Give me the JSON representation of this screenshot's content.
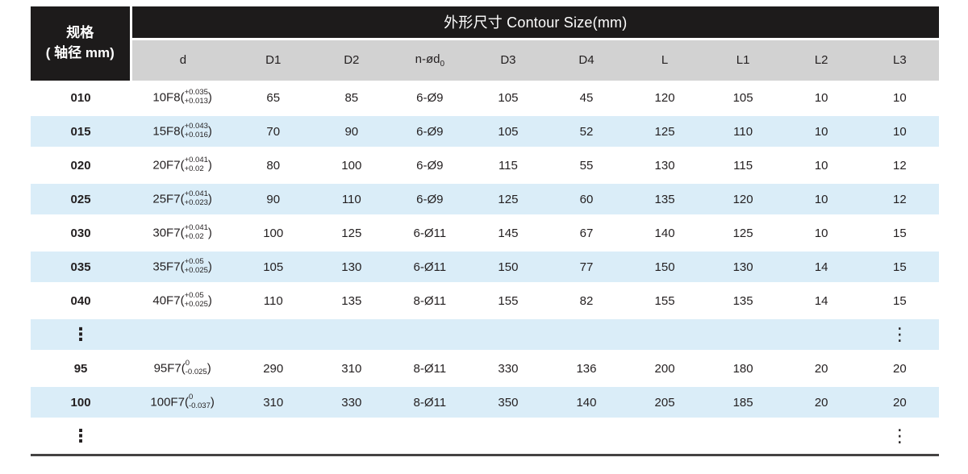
{
  "colors": {
    "header_black": "#1d1b1b",
    "subheader_gray": "#d2d2d2",
    "row_blue": "#daedf8",
    "text": "#231f20",
    "bottom_rule": "#454343"
  },
  "table": {
    "spec_header": {
      "line1": "规格",
      "line2": "( 轴径 mm)"
    },
    "group_header": "外形尺寸 Contour Size(mm)",
    "columns": [
      {
        "label": "d",
        "sub": ""
      },
      {
        "label": "D1",
        "sub": ""
      },
      {
        "label": "D2",
        "sub": ""
      },
      {
        "label": "n-ød",
        "sub": "0"
      },
      {
        "label": "D3",
        "sub": ""
      },
      {
        "label": "D4",
        "sub": ""
      },
      {
        "label": "L",
        "sub": ""
      },
      {
        "label": "L1",
        "sub": ""
      },
      {
        "label": "L2",
        "sub": ""
      },
      {
        "label": "L3",
        "sub": ""
      }
    ],
    "ellipsis_char": "⋮",
    "rows": [
      {
        "type": "data",
        "spec": "010",
        "d": {
          "base": "10F8(",
          "top": "+0.035",
          "bottom": "+0.013",
          "close": ")"
        },
        "values": [
          "65",
          "85",
          "6-Ø9",
          "105",
          "45",
          "120",
          "105",
          "10",
          "10"
        ]
      },
      {
        "type": "data",
        "spec": "015",
        "d": {
          "base": "15F8(",
          "top": "+0.043",
          "bottom": "+0.016",
          "close": ")"
        },
        "values": [
          "70",
          "90",
          "6-Ø9",
          "105",
          "52",
          "125",
          "110",
          "10",
          "10"
        ]
      },
      {
        "type": "data",
        "spec": "020",
        "d": {
          "base": "20F7(",
          "top": "+0.041",
          "bottom": "+0.02",
          "close": ")"
        },
        "values": [
          "80",
          "100",
          "6-Ø9",
          "115",
          "55",
          "130",
          "115",
          "10",
          "12"
        ]
      },
      {
        "type": "data",
        "spec": "025",
        "d": {
          "base": "25F7(",
          "top": "+0.041",
          "bottom": "+0.023",
          "close": ")"
        },
        "values": [
          "90",
          "110",
          "6-Ø9",
          "125",
          "60",
          "135",
          "120",
          "10",
          "12"
        ]
      },
      {
        "type": "data",
        "spec": "030",
        "d": {
          "base": "30F7(",
          "top": "+0.041",
          "bottom": "+0.02",
          "close": ")"
        },
        "values": [
          "100",
          "125",
          "6-Ø11",
          "145",
          "67",
          "140",
          "125",
          "10",
          "15"
        ]
      },
      {
        "type": "data",
        "spec": "035",
        "d": {
          "base": "35F7(",
          "top": "+0.05",
          "bottom": "+0.025",
          "close": ")"
        },
        "values": [
          "105",
          "130",
          "6-Ø11",
          "150",
          "77",
          "150",
          "130",
          "14",
          "15"
        ]
      },
      {
        "type": "data",
        "spec": "040",
        "d": {
          "base": "40F7(",
          "top": "+0.05",
          "bottom": "+0.025",
          "close": ")"
        },
        "values": [
          "110",
          "135",
          "8-Ø11",
          "155",
          "82",
          "155",
          "135",
          "14",
          "15"
        ]
      },
      {
        "type": "ellipsis"
      },
      {
        "type": "data",
        "spec": "95",
        "d": {
          "base": "95F7(",
          "top": "0",
          "bottom": "-0.025",
          "close": ")"
        },
        "values": [
          "290",
          "310",
          "8-Ø11",
          "330",
          "136",
          "200",
          "180",
          "20",
          "20"
        ]
      },
      {
        "type": "data",
        "spec": "100",
        "d": {
          "base": "100F7(",
          "top": "0",
          "bottom": "-0.037",
          "close": ")"
        },
        "values": [
          "310",
          "330",
          "8-Ø11",
          "350",
          "140",
          "205",
          "185",
          "20",
          "20"
        ]
      },
      {
        "type": "ellipsis"
      }
    ]
  }
}
